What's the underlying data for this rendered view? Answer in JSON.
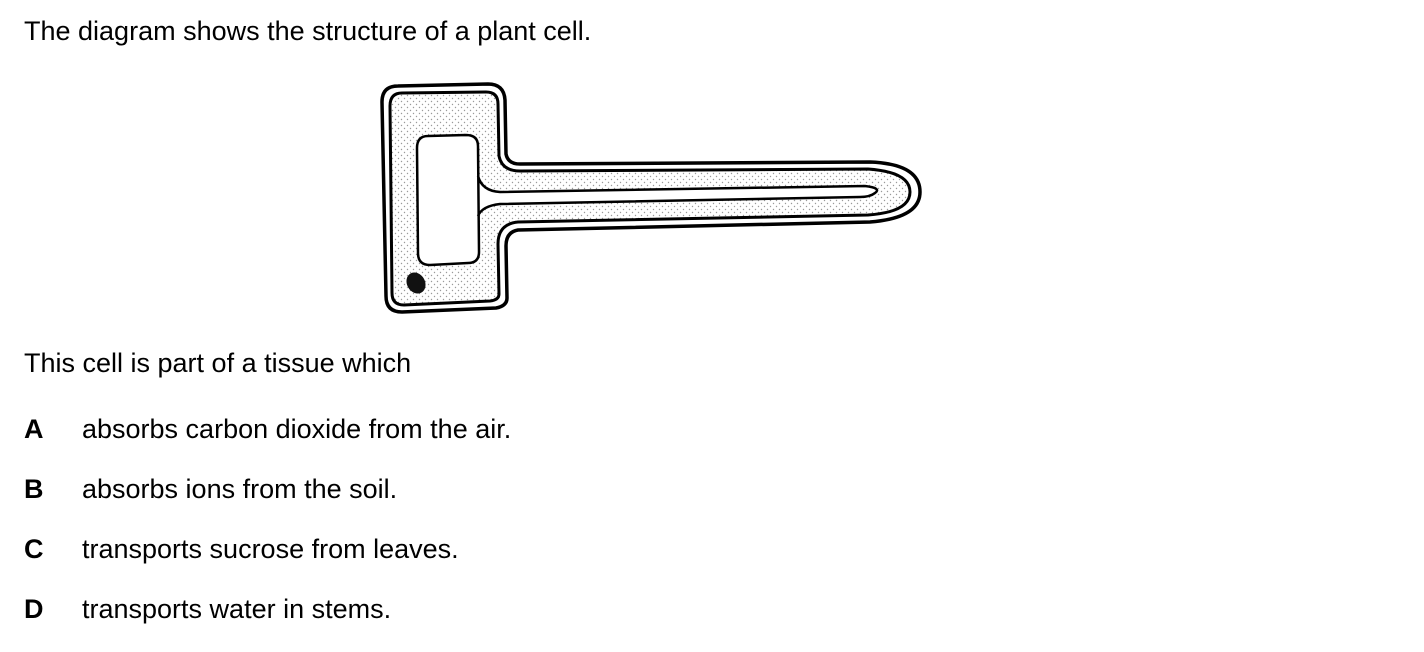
{
  "question": {
    "intro": "The diagram shows the structure of a plant cell.",
    "stem": "This cell is part of a tissue which",
    "options": [
      {
        "letter": "A",
        "text": "absorbs carbon dioxide from the air."
      },
      {
        "letter": "B",
        "text": "absorbs ions from the soil."
      },
      {
        "letter": "C",
        "text": "transports sucrose from leaves."
      },
      {
        "letter": "D",
        "text": "transports water in stems."
      }
    ]
  },
  "diagram": {
    "subject": "plant cell",
    "parts": [
      "cell-wall",
      "cell-membrane",
      "cytoplasm",
      "vacuole",
      "nucleus"
    ],
    "colors": {
      "line": "#000000",
      "cytoplasm_stipple": "#9a9a9a",
      "background": "#ffffff"
    }
  }
}
